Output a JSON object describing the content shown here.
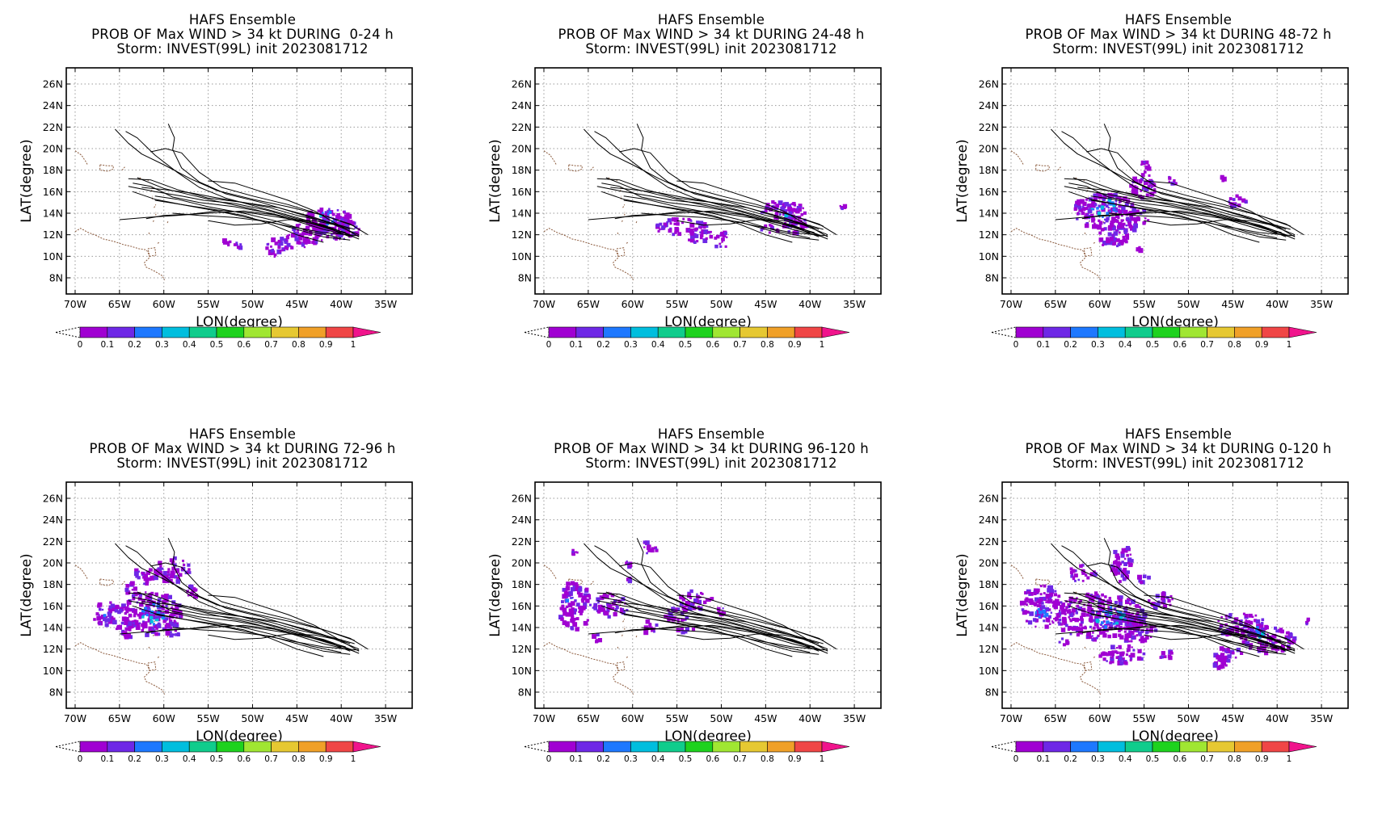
{
  "panels": [
    {
      "line1": "HAFS Ensemble",
      "line2": "PROB OF Max WIND > 34 kt DURING  0-24 h",
      "line3": "Storm: INVEST(99L) init 2023081712",
      "blobs": [
        [
          -41.5,
          13.2,
          3.0,
          1.2
        ],
        [
          -40.5,
          12.5,
          2.5,
          1.0
        ],
        [
          -43.5,
          12.4,
          2.0,
          0.7
        ],
        [
          -45.5,
          11.3,
          1.8,
          0.8
        ],
        [
          -47.5,
          10.7,
          1.0,
          0.9
        ],
        [
          -51.5,
          11.0,
          0.8,
          0.3
        ],
        [
          -53.0,
          11.2,
          0.6,
          0.3
        ],
        [
          -43.0,
          11.5,
          1.0,
          0.5
        ]
      ],
      "highs": [
        [
          -41.5,
          13.6,
          1.0,
          0.6
        ]
      ]
    },
    {
      "line1": "HAFS Ensemble",
      "line2": "PROB OF Max WIND > 34 kt DURING 24-48 h",
      "line3": "Storm: INVEST(99L) init 2023081712",
      "blobs": [
        [
          -43.0,
          14.2,
          2.5,
          1.0
        ],
        [
          -41.5,
          13.0,
          1.5,
          0.9
        ],
        [
          -54.5,
          12.7,
          3.0,
          0.8
        ],
        [
          -52.5,
          12.0,
          1.5,
          0.8
        ],
        [
          -50.0,
          11.5,
          0.7,
          1.0
        ],
        [
          -36.3,
          14.6,
          0.3,
          0.2
        ],
        [
          -44.5,
          12.5,
          1.0,
          0.4
        ]
      ],
      "highs": [
        [
          -42.3,
          13.6,
          0.7,
          0.4
        ]
      ]
    },
    {
      "line1": "HAFS Ensemble",
      "line2": "PROB OF Max WIND > 34 kt DURING 48-72 h",
      "line3": "Storm: INVEST(99L) init 2023081712",
      "blobs": [
        [
          -59.5,
          14.2,
          3.5,
          1.7
        ],
        [
          -56.5,
          13.5,
          2.0,
          1.2
        ],
        [
          -58.5,
          11.8,
          1.8,
          1.0
        ],
        [
          -55.0,
          16.5,
          1.5,
          1.2
        ],
        [
          -55.0,
          18.3,
          0.7,
          0.5
        ],
        [
          -52.0,
          17.0,
          0.8,
          0.4
        ],
        [
          -46.0,
          17.2,
          0.3,
          0.2
        ],
        [
          -44.5,
          15.0,
          1.2,
          0.6
        ],
        [
          -55.5,
          10.6,
          0.3,
          0.3
        ]
      ],
      "highs": [
        [
          -59.5,
          14.5,
          1.5,
          0.9
        ]
      ]
    },
    {
      "line1": "HAFS Ensemble",
      "line2": "PROB OF Max WIND > 34 kt DURING 72-96 h",
      "line3": "Storm: INVEST(99L) init 2023081712",
      "blobs": [
        [
          -61.5,
          15.3,
          3.5,
          2.0
        ],
        [
          -66.5,
          15.2,
          1.5,
          1.3
        ],
        [
          -59.0,
          19.3,
          2.0,
          1.2
        ],
        [
          -62.0,
          18.8,
          1.5,
          0.8
        ],
        [
          -57.0,
          17.3,
          0.8,
          0.6
        ],
        [
          -64.0,
          13.8,
          1.5,
          0.8
        ],
        [
          -63.5,
          17.5,
          0.8,
          0.6
        ],
        [
          -59.0,
          13.7,
          1.0,
          0.6
        ]
      ],
      "highs": [
        [
          -61.0,
          15.3,
          1.5,
          1.0
        ],
        [
          -66.5,
          15.0,
          0.6,
          0.5
        ]
      ]
    },
    {
      "line1": "HAFS Ensemble",
      "line2": "PROB OF Max WIND > 34 kt DURING 96-120 h",
      "line3": "Storm: INVEST(99L) init 2023081712",
      "blobs": [
        [
          -66.5,
          16.0,
          1.8,
          2.3
        ],
        [
          -62.5,
          16.0,
          2.0,
          1.2
        ],
        [
          -58.0,
          21.5,
          0.8,
          0.8
        ],
        [
          -53.0,
          16.5,
          2.0,
          0.9
        ],
        [
          -55.0,
          15.2,
          1.5,
          0.7
        ],
        [
          -58.0,
          14.0,
          0.8,
          0.6
        ],
        [
          -60.5,
          18.5,
          0.5,
          0.3
        ],
        [
          -64.0,
          13.0,
          0.4,
          0.4
        ],
        [
          -66.5,
          21.0,
          0.3,
          0.3
        ],
        [
          -60.5,
          19.9,
          0.3,
          0.3
        ],
        [
          -54.0,
          13.7,
          1.0,
          0.3
        ],
        [
          -50.0,
          15.5,
          0.6,
          0.3
        ]
      ],
      "highs": [
        [
          -67.0,
          16.8,
          0.5,
          0.5
        ]
      ]
    },
    {
      "line1": "HAFS Ensemble",
      "line2": "PROB OF Max WIND > 34 kt DURING 0-120 h",
      "line3": "Storm: INVEST(99L) init 2023081712",
      "blobs": [
        [
          -60.0,
          15.0,
          5.0,
          2.2
        ],
        [
          -66.5,
          16.0,
          2.5,
          2.0
        ],
        [
          -56.0,
          14.0,
          2.5,
          1.4
        ],
        [
          -57.5,
          20.0,
          1.2,
          1.8
        ],
        [
          -62.0,
          19.0,
          1.5,
          0.8
        ],
        [
          -44.0,
          14.2,
          3.0,
          1.2
        ],
        [
          -41.0,
          12.8,
          3.0,
          1.2
        ],
        [
          -45.5,
          11.5,
          1.5,
          0.8
        ],
        [
          -53.0,
          16.5,
          1.5,
          0.8
        ],
        [
          -57.5,
          11.5,
          2.5,
          0.9
        ],
        [
          -52.5,
          11.5,
          1.0,
          0.4
        ],
        [
          -46.5,
          10.5,
          0.8,
          0.6
        ],
        [
          -36.5,
          14.5,
          0.3,
          0.3
        ],
        [
          -64.0,
          12.8,
          0.6,
          0.5
        ],
        [
          -55.0,
          18.5,
          0.8,
          0.4
        ]
      ],
      "highs": [
        [
          -59.0,
          15.0,
          2.0,
          1.0
        ],
        [
          -42.5,
          13.5,
          1.0,
          0.6
        ],
        [
          -66.5,
          15.5,
          0.8,
          0.6
        ]
      ]
    }
  ],
  "axes": {
    "xlabel": "LON(degree)",
    "ylabel": "LAT(degree)",
    "lon_ticks": [
      -70,
      -65,
      -60,
      -55,
      -50,
      -45,
      -40,
      -35
    ],
    "lon_labels": [
      "70W",
      "65W",
      "60W",
      "55W",
      "50W",
      "45W",
      "40W",
      "35W"
    ],
    "lat_ticks": [
      8,
      10,
      12,
      14,
      16,
      18,
      20,
      22,
      24,
      26
    ],
    "lat_labels": [
      "8N",
      "10N",
      "12N",
      "14N",
      "16N",
      "18N",
      "20N",
      "22N",
      "24N",
      "26N"
    ]
  },
  "colorbar": {
    "labels": [
      "0",
      "0.1",
      "0.2",
      "0.3",
      "0.4",
      "0.5",
      "0.6",
      "0.7",
      "0.8",
      "0.9",
      "1"
    ],
    "colors": [
      "#a000d2",
      "#6e28e6",
      "#1e78ff",
      "#00bede",
      "#10cc8c",
      "#1ed21e",
      "#a0e632",
      "#e6c832",
      "#f0a028",
      "#f04646"
    ],
    "over_color": "#f0148c"
  },
  "tracks": [
    [
      [
        -37,
        12
      ],
      [
        -39,
        13
      ],
      [
        -42,
        13.8
      ],
      [
        -46,
        14.6
      ],
      [
        -50,
        15.3
      ],
      [
        -54,
        16.1
      ],
      [
        -57,
        17.2
      ],
      [
        -60,
        18.5
      ],
      [
        -62.5,
        19.5
      ],
      [
        -64,
        20.5
      ],
      [
        -65.5,
        21.8
      ]
    ],
    [
      [
        -38,
        11.6
      ],
      [
        -41,
        12.6
      ],
      [
        -45,
        13.6
      ],
      [
        -49,
        14.5
      ],
      [
        -53,
        15.4
      ],
      [
        -56,
        16.4
      ],
      [
        -58.5,
        17.8
      ],
      [
        -61,
        19.4
      ],
      [
        -63,
        21.0
      ],
      [
        -64.3,
        21.6
      ]
    ],
    [
      [
        -38,
        12
      ],
      [
        -41,
        13
      ],
      [
        -45,
        14
      ],
      [
        -49,
        15
      ],
      [
        -53,
        15.8
      ],
      [
        -56,
        16.9
      ],
      [
        -58,
        18.2
      ],
      [
        -59,
        19.9
      ],
      [
        -58.8,
        21.0
      ],
      [
        -59.5,
        22.3
      ]
    ],
    [
      [
        -38.5,
        11.8
      ],
      [
        -42,
        12.5
      ],
      [
        -46,
        13.5
      ],
      [
        -50,
        14.4
      ],
      [
        -54,
        15.1
      ],
      [
        -57,
        15.7
      ],
      [
        -60,
        16.3
      ],
      [
        -63,
        17.3
      ]
    ],
    [
      [
        -39,
        11.8
      ],
      [
        -42,
        12.8
      ],
      [
        -46,
        13.5
      ],
      [
        -50,
        14.0
      ],
      [
        -54,
        14.3
      ],
      [
        -58,
        14.8
      ],
      [
        -61,
        15.3
      ],
      [
        -63.5,
        16.0
      ]
    ],
    [
      [
        -39,
        12.5
      ],
      [
        -43,
        13.6
      ],
      [
        -47,
        14.5
      ],
      [
        -51,
        15.0
      ],
      [
        -55,
        15.4
      ],
      [
        -58.5,
        16.2
      ],
      [
        -61.5,
        17.1
      ],
      [
        -64,
        17.2
      ]
    ],
    [
      [
        -39.5,
        12.2
      ],
      [
        -43,
        13.0
      ],
      [
        -47,
        13.8
      ],
      [
        -51,
        14.2
      ],
      [
        -55,
        14.0
      ],
      [
        -58.5,
        13.8
      ],
      [
        -62,
        13.6
      ],
      [
        -65,
        13.4
      ]
    ],
    [
      [
        -38,
        11.9
      ],
      [
        -42,
        12.2
      ],
      [
        -46,
        12.8
      ],
      [
        -50,
        13.5
      ],
      [
        -54,
        14.2
      ],
      [
        -58,
        14.8
      ],
      [
        -61,
        15.2
      ]
    ],
    [
      [
        -40,
        12.2
      ],
      [
        -44,
        13.2
      ],
      [
        -48,
        14.0
      ],
      [
        -52,
        14.6
      ],
      [
        -56,
        15.0
      ],
      [
        -59,
        15.5
      ],
      [
        -61.5,
        16.5
      ],
      [
        -63.5,
        16.8
      ]
    ],
    [
      [
        -38.5,
        12.8
      ],
      [
        -42,
        13.8
      ],
      [
        -46,
        14.8
      ],
      [
        -50,
        15.6
      ],
      [
        -53.5,
        16.4
      ],
      [
        -56,
        17.8
      ],
      [
        -58,
        19.6
      ],
      [
        -59.8,
        20.0
      ],
      [
        -61.5,
        19.7
      ]
    ],
    [
      [
        -39,
        11.5
      ],
      [
        -42,
        11.8
      ],
      [
        -45,
        12.5
      ],
      [
        -48,
        13.2
      ],
      [
        -52,
        13.6
      ],
      [
        -56,
        13.8
      ],
      [
        -59,
        14.0
      ]
    ],
    [
      [
        -40,
        12.8
      ],
      [
        -43,
        13.3
      ],
      [
        -46,
        13.4
      ],
      [
        -49,
        13.0
      ],
      [
        -52,
        12.9
      ],
      [
        -55,
        13.3
      ]
    ],
    [
      [
        -38.5,
        12.5
      ],
      [
        -41.5,
        13.2
      ],
      [
        -45,
        13.8
      ],
      [
        -48,
        14.5
      ],
      [
        -51,
        15.0
      ],
      [
        -54.5,
        15.5
      ],
      [
        -57,
        15.9
      ],
      [
        -60,
        16.2
      ],
      [
        -62.5,
        16.4
      ]
    ],
    [
      [
        -39,
        12
      ],
      [
        -42,
        12.9
      ],
      [
        -45,
        13.5
      ],
      [
        -48.5,
        14.3
      ],
      [
        -52,
        14.9
      ],
      [
        -55.5,
        15.2
      ],
      [
        -58,
        15.6
      ],
      [
        -61,
        16.0
      ],
      [
        -64,
        16.5
      ]
    ],
    [
      [
        -40,
        11.7
      ],
      [
        -43.5,
        12.3
      ],
      [
        -47.5,
        13.3
      ],
      [
        -51,
        14.0
      ],
      [
        -55,
        14.6
      ],
      [
        -58.5,
        15.3
      ],
      [
        -61,
        15.6
      ]
    ],
    [
      [
        -42,
        11.3
      ],
      [
        -45,
        12.0
      ],
      [
        -48,
        13.0
      ],
      [
        -51,
        13.8
      ],
      [
        -54,
        14.2
      ],
      [
        -57,
        13.9
      ],
      [
        -60,
        13.8
      ],
      [
        -62,
        13.5
      ]
    ],
    [
      [
        -38,
        11.8
      ],
      [
        -40.5,
        13
      ],
      [
        -43,
        14.2
      ],
      [
        -46,
        15.2
      ],
      [
        -49,
        16.0
      ],
      [
        -52,
        16.8
      ],
      [
        -55,
        17.0
      ]
    ]
  ],
  "coast": [
    [
      [
        -70,
        19.8
      ],
      [
        -69.3,
        19.4
      ],
      [
        -68.8,
        18.8
      ],
      [
        -68.6,
        18.5
      ]
    ],
    [
      [
        -67.2,
        18.5
      ],
      [
        -66.4,
        18.4
      ],
      [
        -65.7,
        18.4
      ],
      [
        -65.7,
        18.1
      ],
      [
        -66.3,
        17.9
      ],
      [
        -67.2,
        18.0
      ],
      [
        -67.2,
        18.5
      ]
    ],
    [
      [
        -64.7,
        18.0
      ],
      [
        -64.4,
        18.3
      ]
    ],
    [
      [
        -70,
        12.3
      ],
      [
        -69.4,
        12.6
      ],
      [
        -68.5,
        12.2
      ],
      [
        -67.8,
        12.0
      ],
      [
        -66.8,
        11.6
      ],
      [
        -65.7,
        11.4
      ],
      [
        -64.6,
        11.1
      ],
      [
        -63.6,
        10.9
      ],
      [
        -62.8,
        10.7
      ],
      [
        -62.0,
        10.6
      ],
      [
        -61.8,
        10.4
      ],
      [
        -61.6,
        9.9
      ],
      [
        -62.2,
        9.4
      ],
      [
        -62.0,
        9.0
      ],
      [
        -61.0,
        8.6
      ],
      [
        -60.2,
        8.2
      ],
      [
        -59.9,
        7.8
      ]
    ],
    [
      [
        -61.8,
        10.7
      ],
      [
        -61.0,
        10.8
      ],
      [
        -60.9,
        10.1
      ],
      [
        -61.6,
        10.0
      ],
      [
        -61.8,
        10.7
      ]
    ],
    [
      [
        -60.7,
        11.2
      ],
      [
        -60.5,
        11.3
      ]
    ],
    [
      [
        -61.7,
        12.2
      ],
      [
        -61.6,
        12.0
      ]
    ],
    [
      [
        -61.2,
        13.2
      ],
      [
        -61.1,
        13.4
      ]
    ],
    [
      [
        -60.9,
        13.8
      ],
      [
        -60.9,
        14.1
      ]
    ],
    [
      [
        -61.1,
        14.5
      ],
      [
        -60.9,
        14.8
      ]
    ],
    [
      [
        -61.3,
        15.3
      ],
      [
        -61.3,
        15.6
      ]
    ],
    [
      [
        -61.4,
        16.0
      ],
      [
        -61.3,
        16.5
      ]
    ],
    [
      [
        -61.8,
        17.0
      ],
      [
        -61.7,
        17.2
      ]
    ],
    [
      [
        -62.6,
        17.2
      ],
      [
        -62.8,
        17.4
      ]
    ],
    [
      [
        -59.6,
        13.1
      ],
      [
        -59.5,
        13.3
      ]
    ]
  ]
}
